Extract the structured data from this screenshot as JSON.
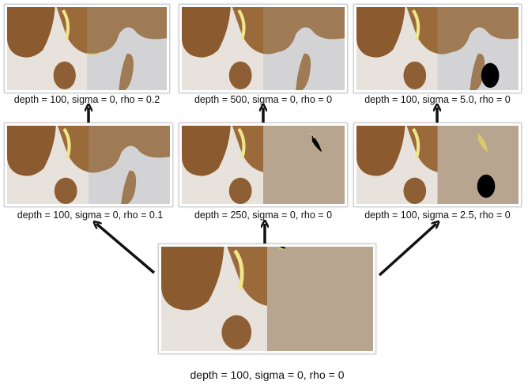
{
  "panels": {
    "base": {
      "label": "depth = 100, sigma = 0, rho = 0"
    },
    "mid_left": {
      "label": "depth = 100, sigma = 0, rho = 0.1"
    },
    "mid_center": {
      "label": "depth = 250, sigma = 0, rho = 0"
    },
    "mid_right": {
      "label": "depth = 100, sigma = 2.5, rho = 0"
    },
    "top_left": {
      "label": "depth = 100, sigma = 0, rho = 0.2"
    },
    "top_center": {
      "label": "depth = 500, sigma = 0, rho = 0"
    },
    "top_right": {
      "label": "depth = 100, sigma = 5.0, rho = 0"
    }
  },
  "colors": {
    "tissue_brown": "#9a6a3a",
    "seg_brown": "#9e7a55",
    "background_beige": "#b7a58f",
    "background_gray": "#d3d3d5",
    "black_region": "#000000",
    "arrow": "#111111"
  }
}
